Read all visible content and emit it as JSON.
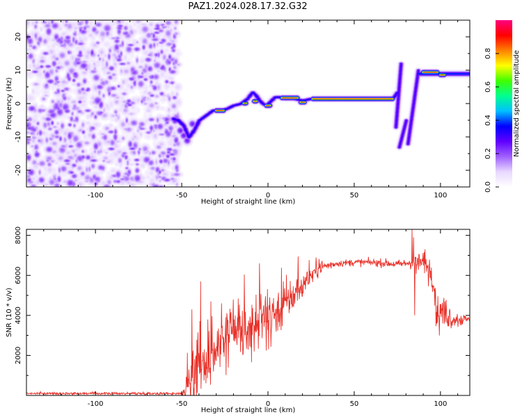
{
  "title": "PAZ1.2024.028.17.32.G32",
  "chart_data": [
    {
      "type": "heatmap",
      "xlabel": "Height of straight line (km)",
      "ylabel": "Frequency (Hz)",
      "xlim": [
        -140,
        117
      ],
      "ylim": [
        -25,
        25
      ],
      "x_ticks": [
        -100,
        -50,
        0,
        50,
        100
      ],
      "y_ticks": [
        -20,
        -10,
        0,
        10,
        20
      ],
      "noise_region_x": [
        -140,
        -52
      ],
      "ridge": {
        "x": [
          -55,
          -52,
          -49,
          -46,
          -43,
          -40,
          -36,
          -32,
          -28,
          -24,
          -20,
          -16,
          -12,
          -9,
          -7,
          -5,
          -3,
          -1,
          1,
          4,
          7,
          10,
          15,
          20,
          25,
          30,
          40,
          50,
          60,
          70,
          73,
          75
        ],
        "y": [
          -4.5,
          -5,
          -6.5,
          -10,
          -8,
          -5,
          -3.5,
          -2,
          -2,
          -1.5,
          -0.5,
          0,
          1.5,
          3.5,
          2.5,
          1,
          0,
          -0.5,
          0.5,
          2,
          2,
          1.5,
          1.5,
          1,
          1.5,
          1.5,
          1.5,
          1.5,
          1.5,
          1.5,
          2,
          3.5
        ]
      },
      "high_amplitude_segments": [
        {
          "x": [
            -30,
            -26
          ],
          "y": -2
        },
        {
          "x": [
            -14,
            -13
          ],
          "y": 0.2
        },
        {
          "x": [
            -8,
            -7
          ],
          "y": 0.8
        },
        {
          "x": [
            -1,
            1
          ],
          "y": -0.5
        },
        {
          "x": [
            8,
            17
          ],
          "y": 1.8
        },
        {
          "x": [
            19,
            21
          ],
          "y": 0.5
        },
        {
          "x": [
            26,
            72
          ],
          "y": 1.5
        },
        {
          "x": [
            90,
            98
          ],
          "y": 9.5
        },
        {
          "x": [
            100,
            102
          ],
          "y": 8.7
        }
      ],
      "vertical_streaks": [
        {
          "x": [
            74,
            77
          ],
          "y": [
            -7,
            12
          ]
        },
        {
          "x": [
            76,
            80
          ],
          "y": [
            -13,
            -5
          ]
        },
        {
          "x": [
            81,
            87
          ],
          "y": [
            -12,
            10
          ]
        }
      ],
      "upper_band": {
        "x": [
          87,
          117
        ],
        "y": 9
      },
      "colorbar": {
        "label": "Normalized spectral amplitude",
        "range": [
          0,
          1
        ],
        "ticks": [
          0.0,
          0.2,
          0.4,
          0.6,
          0.8
        ],
        "colors": [
          "#ffffff",
          "#e8d8ff",
          "#a060ff",
          "#6000ff",
          "#0000ff",
          "#00c0ff",
          "#00ff90",
          "#40ff00",
          "#ffff00",
          "#ff8000",
          "#ff0000",
          "#ff0080"
        ]
      }
    },
    {
      "type": "line",
      "xlabel": "Height of straight line (km)",
      "ylabel": "SNR (10 * v/v)",
      "xlim": [
        -140,
        117
      ],
      "ylim": [
        0,
        8300
      ],
      "x_ticks": [
        -100,
        -50,
        0,
        50,
        100
      ],
      "y_ticks": [
        2000,
        4000,
        6000,
        8000
      ],
      "color": "#e8322a",
      "envelope": {
        "x": [
          -140,
          -50,
          -47,
          -45,
          -42,
          -38,
          -34,
          -30,
          -25,
          -20,
          -15,
          -10,
          -5,
          0,
          5,
          10,
          15,
          20,
          25,
          30,
          40,
          50,
          60,
          70,
          75,
          80,
          85,
          90,
          95,
          98,
          102,
          106,
          110,
          117
        ],
        "y": [
          100,
          100,
          250,
          700,
          1400,
          1600,
          1900,
          2100,
          2500,
          3000,
          3100,
          3300,
          3500,
          3700,
          4200,
          4600,
          5000,
          5500,
          6000,
          6400,
          6600,
          6650,
          6650,
          6600,
          6550,
          6600,
          6700,
          6650,
          6300,
          4200,
          4200,
          3900,
          3800,
          3800
        ]
      },
      "noise_amplitude": {
        "x": [
          -140,
          -50,
          -45,
          -30,
          -10,
          10,
          25,
          40,
          80,
          95,
          105,
          117
        ],
        "y": [
          50,
          60,
          1600,
          1300,
          1200,
          1000,
          400,
          150,
          200,
          700,
          600,
          100
        ]
      },
      "spikes": [
        {
          "x": -39,
          "y": 5700
        },
        {
          "x": -44,
          "y": 4300
        },
        {
          "x": -33,
          "y": 4700
        },
        {
          "x": -27,
          "y": 4600
        },
        {
          "x": -5,
          "y": 6600
        },
        {
          "x": -3,
          "y": 4000
        },
        {
          "x": 9,
          "y": 5700
        },
        {
          "x": 83.5,
          "y": 8300
        },
        {
          "x": 84.5,
          "y": 7900
        },
        {
          "x": 91,
          "y": 7300
        },
        {
          "x": 85,
          "y": 4000
        }
      ]
    }
  ]
}
